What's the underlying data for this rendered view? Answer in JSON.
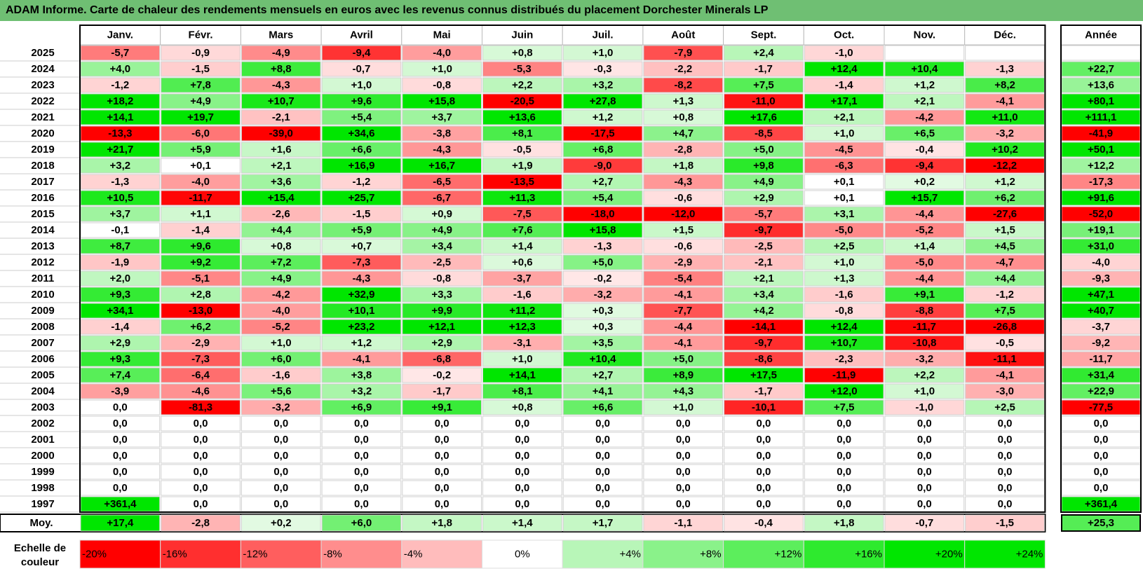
{
  "title": "ADAM Informe. Carte de chaleur des rendements mensuels en euros avec les revenus connus distribués du placement Dorchester Minerals LP",
  "colors": {
    "title_bg": "#6fbf73",
    "negative": "#ff0000",
    "positive": "#00e000",
    "neutral": "#ffffff"
  },
  "chart_data": {
    "type": "heatmap",
    "title": "ADAM Informe. Carte de chaleur des rendements mensuels en euros avec les revenus connus distribués du placement Dorchester Minerals LP",
    "months": [
      "Janv.",
      "Févr.",
      "Mars",
      "Avril",
      "Mai",
      "Juin",
      "Juil.",
      "Août",
      "Sept.",
      "Oct.",
      "Nov.",
      "Déc."
    ],
    "year_header": "Année",
    "years": [
      "2025",
      "2024",
      "2023",
      "2022",
      "2021",
      "2020",
      "2019",
      "2018",
      "2017",
      "2016",
      "2015",
      "2014",
      "2013",
      "2012",
      "2011",
      "2010",
      "2009",
      "2008",
      "2007",
      "2006",
      "2005",
      "2004",
      "2003",
      "2002",
      "2001",
      "2000",
      "1999",
      "1998",
      "1997"
    ],
    "values": [
      [
        "-5,7",
        "-0,9",
        "-4,9",
        "-9,4",
        "-4,0",
        "+0,8",
        "+1,0",
        "-7,9",
        "+2,4",
        "-1,0",
        "",
        ""
      ],
      [
        "+4,0",
        "-1,5",
        "+8,8",
        "-0,7",
        "+1,0",
        "-5,3",
        "-0,3",
        "-2,2",
        "-1,7",
        "+12,4",
        "+10,4",
        "-1,3"
      ],
      [
        "-1,2",
        "+7,8",
        "-4,3",
        "+1,0",
        "-0,8",
        "+2,2",
        "+3,2",
        "-8,2",
        "+7,5",
        "-1,4",
        "+1,2",
        "+8,2"
      ],
      [
        "+18,2",
        "+4,9",
        "+10,7",
        "+9,6",
        "+15,8",
        "-20,5",
        "+27,8",
        "+1,3",
        "-11,0",
        "+17,1",
        "+2,1",
        "-4,1"
      ],
      [
        "+14,1",
        "+19,7",
        "-2,1",
        "+5,4",
        "+3,7",
        "+13,6",
        "+1,2",
        "+0,8",
        "+17,6",
        "+2,1",
        "-4,2",
        "+11,0"
      ],
      [
        "-13,3",
        "-6,0",
        "-39,0",
        "+34,6",
        "-3,8",
        "+8,1",
        "-17,5",
        "+4,7",
        "-8,5",
        "+1,0",
        "+6,5",
        "-3,2"
      ],
      [
        "+21,7",
        "+5,9",
        "+1,6",
        "+6,6",
        "-4,3",
        "-0,5",
        "+6,8",
        "-2,8",
        "+5,0",
        "-4,5",
        "-0,4",
        "+10,2"
      ],
      [
        "+3,2",
        "+0,1",
        "+2,1",
        "+16,9",
        "+16,7",
        "+1,9",
        "-9,0",
        "+1,8",
        "+9,8",
        "-6,3",
        "-9,4",
        "-12,2"
      ],
      [
        "-1,3",
        "-4,0",
        "+3,6",
        "-1,2",
        "-6,5",
        "-13,5",
        "+2,7",
        "-4,3",
        "+4,9",
        "+0,1",
        "+0,2",
        "+1,2"
      ],
      [
        "+10,5",
        "-11,7",
        "+15,4",
        "+25,7",
        "-6,7",
        "+11,3",
        "+5,4",
        "-0,6",
        "+2,9",
        "+0,1",
        "+15,7",
        "+6,2"
      ],
      [
        "+3,7",
        "+1,1",
        "-2,6",
        "-1,5",
        "+0,9",
        "-7,5",
        "-18,0",
        "-12,0",
        "-5,7",
        "+3,1",
        "-4,4",
        "-27,6"
      ],
      [
        "-0,1",
        "-1,4",
        "+4,4",
        "+5,9",
        "+4,9",
        "+7,6",
        "+15,8",
        "+1,5",
        "-9,7",
        "-5,0",
        "-5,2",
        "+1,5"
      ],
      [
        "+8,7",
        "+9,6",
        "+0,8",
        "+0,7",
        "+3,4",
        "+1,4",
        "-1,3",
        "-0,6",
        "-2,5",
        "+2,5",
        "+1,4",
        "+4,5"
      ],
      [
        "-1,9",
        "+9,2",
        "+7,2",
        "-7,3",
        "-2,5",
        "+0,6",
        "+5,0",
        "-2,9",
        "-2,1",
        "+1,0",
        "-5,0",
        "-4,7"
      ],
      [
        "+2,0",
        "-5,1",
        "+4,9",
        "-4,3",
        "-0,8",
        "-3,7",
        "-0,2",
        "-5,4",
        "+2,1",
        "+1,3",
        "-4,4",
        "+4,4"
      ],
      [
        "+9,3",
        "+2,8",
        "-4,2",
        "+32,9",
        "+3,3",
        "-1,6",
        "-3,2",
        "-4,1",
        "+3,4",
        "-1,6",
        "+9,1",
        "-1,2"
      ],
      [
        "+34,1",
        "-13,0",
        "-4,0",
        "+10,1",
        "+9,9",
        "+11,2",
        "+0,3",
        "-7,7",
        "+4,2",
        "-0,8",
        "-8,8",
        "+7,5"
      ],
      [
        "-1,4",
        "+6,2",
        "-5,2",
        "+23,2",
        "+12,1",
        "+12,3",
        "+0,3",
        "-4,4",
        "-14,1",
        "+12,4",
        "-11,7",
        "-26,8"
      ],
      [
        "+2,9",
        "-2,9",
        "+1,0",
        "+1,2",
        "+2,9",
        "-3,1",
        "+3,5",
        "-4,1",
        "-9,7",
        "+10,7",
        "-10,8",
        "-0,5"
      ],
      [
        "+9,3",
        "-7,3",
        "+6,0",
        "-4,1",
        "-6,8",
        "+1,0",
        "+10,4",
        "+5,0",
        "-8,6",
        "-2,3",
        "-3,2",
        "-11,1"
      ],
      [
        "+7,4",
        "-6,4",
        "-1,6",
        "+3,8",
        "-0,2",
        "+14,1",
        "+2,7",
        "+8,9",
        "+17,5",
        "-11,9",
        "+2,2",
        "-4,1"
      ],
      [
        "-3,9",
        "-4,6",
        "+5,6",
        "+3,2",
        "-1,7",
        "+8,1",
        "+4,1",
        "+4,3",
        "-1,7",
        "+12,0",
        "+1,0",
        "-3,0"
      ],
      [
        "0,0",
        "-81,3",
        "-3,2",
        "+6,9",
        "+9,1",
        "+0,8",
        "+6,6",
        "+1,0",
        "-10,1",
        "+7,5",
        "-1,0",
        "+2,5"
      ],
      [
        "0,0",
        "0,0",
        "0,0",
        "0,0",
        "0,0",
        "0,0",
        "0,0",
        "0,0",
        "0,0",
        "0,0",
        "0,0",
        "0,0"
      ],
      [
        "0,0",
        "0,0",
        "0,0",
        "0,0",
        "0,0",
        "0,0",
        "0,0",
        "0,0",
        "0,0",
        "0,0",
        "0,0",
        "0,0"
      ],
      [
        "0,0",
        "0,0",
        "0,0",
        "0,0",
        "0,0",
        "0,0",
        "0,0",
        "0,0",
        "0,0",
        "0,0",
        "0,0",
        "0,0"
      ],
      [
        "0,0",
        "0,0",
        "0,0",
        "0,0",
        "0,0",
        "0,0",
        "0,0",
        "0,0",
        "0,0",
        "0,0",
        "0,0",
        "0,0"
      ],
      [
        "0,0",
        "0,0",
        "0,0",
        "0,0",
        "0,0",
        "0,0",
        "0,0",
        "0,0",
        "0,0",
        "0,0",
        "0,0",
        "0,0"
      ],
      [
        "+361,4",
        "0,0",
        "0,0",
        "0,0",
        "0,0",
        "0,0",
        "0,0",
        "0,0",
        "0,0",
        "0,0",
        "0,0",
        "0,0"
      ]
    ],
    "annual": [
      "",
      "+22,7",
      "+13,6",
      "+80,1",
      "+111,1",
      "-41,9",
      "+50,1",
      "+12,2",
      "-17,3",
      "+91,6",
      "-52,0",
      "+19,1",
      "+31,0",
      "-4,0",
      "-9,3",
      "+47,1",
      "+40,7",
      "-3,7",
      "-9,2",
      "-11,7",
      "+31,4",
      "+22,9",
      "-77,5",
      "0,0",
      "0,0",
      "0,0",
      "0,0",
      "0,0",
      "+361,4"
    ],
    "average_label": "Moy.",
    "averages": [
      "+17,4",
      "-2,8",
      "+0,2",
      "+6,0",
      "+1,8",
      "+1,4",
      "+1,7",
      "-1,1",
      "-0,4",
      "+1,8",
      "-0,7",
      "-1,5"
    ],
    "average_annual": "+25,3",
    "scale_label": "Echelle de couleur",
    "scale": [
      "-20%",
      "-16%",
      "-12%",
      "-8%",
      "-4%",
      "0%",
      "+4%",
      "+8%",
      "+12%",
      "+16%",
      "+20%",
      "+24%"
    ]
  }
}
